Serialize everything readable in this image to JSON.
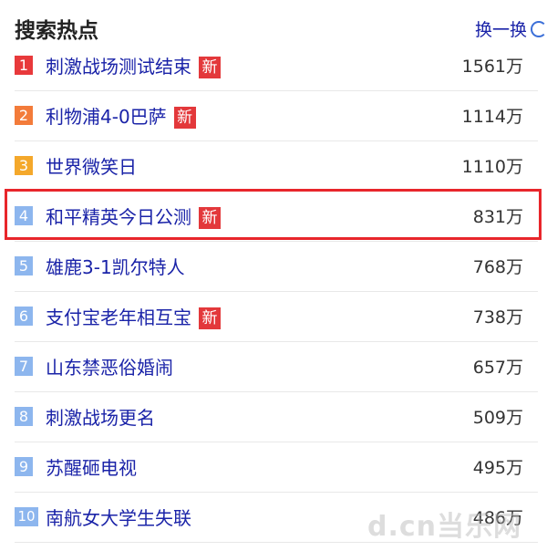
{
  "header": {
    "title": "搜索热点",
    "refresh_label": "换一换",
    "refresh_icon": "refresh-icon"
  },
  "items": [
    {
      "rank": "1",
      "label": "刺激战场测试结束",
      "new": true,
      "count": "1561万",
      "color": "#e8393b"
    },
    {
      "rank": "2",
      "label": "利物浦4-0巴萨",
      "new": true,
      "count": "1114万",
      "color": "#f37b3a"
    },
    {
      "rank": "3",
      "label": "世界微笑日",
      "new": false,
      "count": "1110万",
      "color": "#f4a82b"
    },
    {
      "rank": "4",
      "label": "和平精英今日公测",
      "new": true,
      "count": "831万",
      "color": "#8db6ee",
      "highlighted": true
    },
    {
      "rank": "5",
      "label": "雄鹿3-1凯尔特人",
      "new": false,
      "count": "768万",
      "color": "#8db6ee"
    },
    {
      "rank": "6",
      "label": "支付宝老年相互宝",
      "new": true,
      "count": "738万",
      "color": "#8db6ee"
    },
    {
      "rank": "7",
      "label": "山东禁恶俗婚闹",
      "new": false,
      "count": "657万",
      "color": "#8db6ee"
    },
    {
      "rank": "8",
      "label": "刺激战场更名",
      "new": false,
      "count": "509万",
      "color": "#8db6ee"
    },
    {
      "rank": "9",
      "label": "苏醒砸电视",
      "new": false,
      "count": "495万",
      "color": "#8db6ee"
    },
    {
      "rank": "10",
      "label": "南航女大学生失联",
      "new": false,
      "count": "486万",
      "color": "#8db6ee"
    }
  ],
  "new_badge": "新",
  "watermark": "d.cn 当乐网",
  "highlight_color": "#e8262b"
}
